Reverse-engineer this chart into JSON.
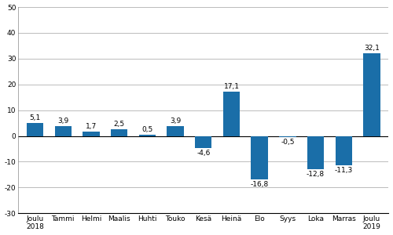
{
  "categories": [
    "Joulu\n2018",
    "Tammi",
    "Helmi",
    "Maalis",
    "Huhti",
    "Touko",
    "Kesä",
    "Heinä",
    "Elo",
    "Syys",
    "Loka",
    "Marras",
    "Joulu\n2019"
  ],
  "values": [
    5.1,
    3.9,
    1.7,
    2.5,
    0.5,
    3.9,
    -4.6,
    17.1,
    -16.8,
    -0.5,
    -12.8,
    -11.3,
    32.1
  ],
  "bar_color": "#1a6ea8",
  "ylim": [
    -30,
    50
  ],
  "yticks": [
    -30,
    -20,
    -10,
    0,
    10,
    20,
    30,
    40,
    50
  ],
  "label_fontsize": 6.5,
  "tick_fontsize": 6.5,
  "background_color": "#ffffff",
  "grid_color": "#bbbbbb"
}
